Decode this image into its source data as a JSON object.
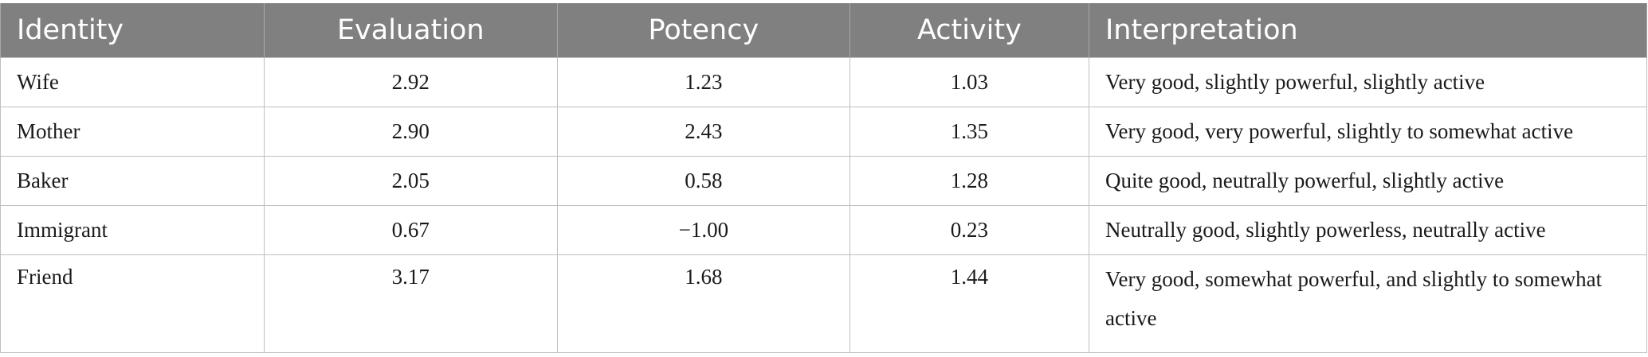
{
  "table": {
    "headers": [
      "Identity",
      "Evaluation",
      "Potency",
      "Activity",
      "Interpretation"
    ],
    "rows": [
      [
        "Wife",
        "2.92",
        "1.23",
        "1.03",
        "Very good, slightly powerful, slightly active"
      ],
      [
        "Mother",
        "2.90",
        "2.43",
        "1.35",
        "Very good, very powerful, slightly to somewhat active"
      ],
      [
        "Baker",
        "2.05",
        "0.58",
        "1.28",
        "Quite good, neutrally powerful, slightly active"
      ],
      [
        "Immigrant",
        "0.67",
        "−1.00",
        "0.23",
        "Neutrally good, slightly powerless, neutrally active"
      ],
      [
        "Friend",
        "3.17",
        "1.68",
        "1.44",
        "Very good, somewhat powerful, and slightly to somewhat active"
      ]
    ]
  }
}
